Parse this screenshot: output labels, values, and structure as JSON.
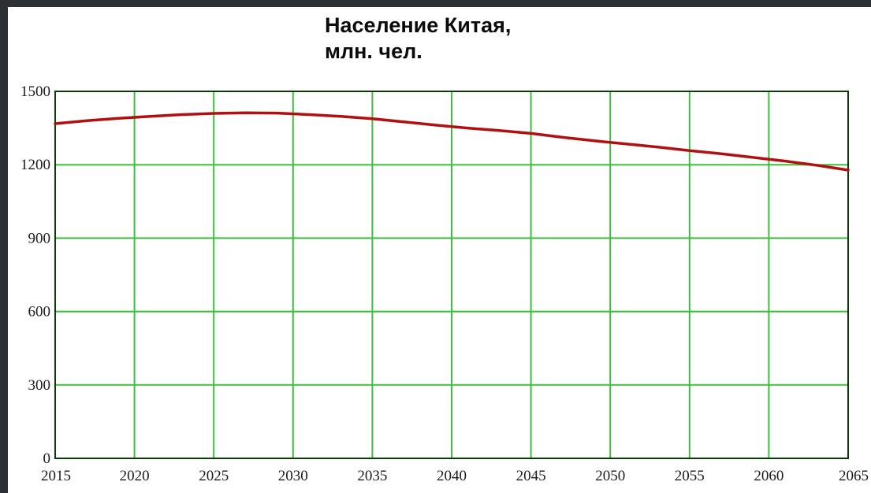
{
  "chart_data": {
    "type": "line",
    "title_lines": [
      "Население Китая,",
      "млн. чел."
    ],
    "xlabel": "",
    "ylabel": "",
    "xlim": [
      2015,
      2065
    ],
    "ylim": [
      0,
      1500
    ],
    "xticks": [
      2015,
      2020,
      2025,
      2030,
      2035,
      2040,
      2045,
      2050,
      2055,
      2060,
      2065
    ],
    "yticks": [
      0,
      300,
      600,
      900,
      1200,
      1500
    ],
    "grid": true,
    "legend": "none",
    "series": [
      {
        "color": "#b01010",
        "x": [
          2015,
          2017,
          2019,
          2021,
          2023,
          2025,
          2027,
          2029,
          2031,
          2033,
          2035,
          2037,
          2039,
          2041,
          2043,
          2045,
          2047,
          2049,
          2051,
          2053,
          2055,
          2057,
          2059,
          2061,
          2063,
          2065
        ],
        "y": [
          1368,
          1380,
          1390,
          1398,
          1405,
          1410,
          1412,
          1411,
          1405,
          1398,
          1388,
          1375,
          1362,
          1350,
          1340,
          1328,
          1312,
          1298,
          1285,
          1272,
          1258,
          1245,
          1230,
          1215,
          1198,
          1178
        ]
      }
    ]
  },
  "colors": {
    "grid": "#3cc03c",
    "axis_frame": "#0a3a0a",
    "line": "#b01010",
    "background": "#ffffff",
    "outer_background": "#2c2f33"
  }
}
